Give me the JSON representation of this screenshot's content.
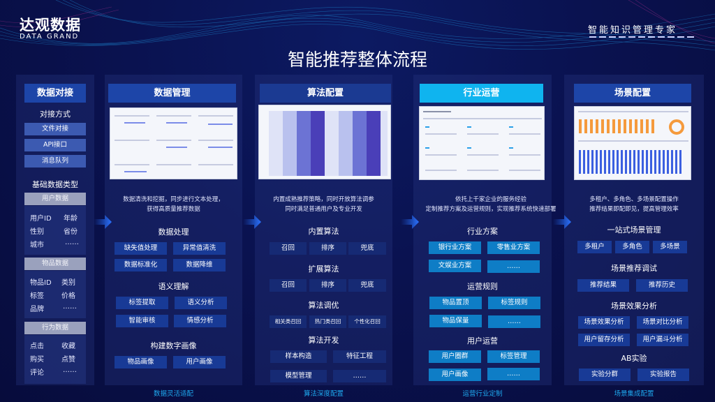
{
  "brand": {
    "name_cn": "达观数据",
    "name_en": "DATA GRAND",
    "slogan": "智能知识管理专家"
  },
  "title": "智能推荐整体流程",
  "colors": {
    "background": "#0a1250",
    "header": "#1d45a8",
    "header_active": "#0fb4ef",
    "button": "#183a96",
    "button_industry": "#0e7dc6",
    "footer_text": "#1ea8ee"
  },
  "col1": {
    "header": "数据对接",
    "method_title": "对接方式",
    "methods": [
      "文件对接",
      "API接口",
      "消息队列"
    ],
    "types_title": "基础数据类型",
    "groups": [
      {
        "label": "用户数据",
        "items": [
          "用户ID",
          "年龄",
          "性别",
          "省份",
          "城市",
          "……"
        ]
      },
      {
        "label": "物品数据",
        "items": [
          "物品ID",
          "类别",
          "标签",
          "价格",
          "品牌",
          "……"
        ]
      },
      {
        "label": "行为数据",
        "items": [
          "点击",
          "收藏",
          "购买",
          "点赞",
          "评论",
          "……"
        ]
      }
    ]
  },
  "col2": {
    "header": "数据管理",
    "desc": [
      "数据清洗和挖掘，同步进行文本处理，",
      "获得高质量推荐数据"
    ],
    "sections": [
      {
        "title": "数据处理",
        "items": [
          "缺失值处理",
          "异常值清洗",
          "数据标准化",
          "数据降维"
        ]
      },
      {
        "title": "语义理解",
        "items": [
          "标签提取",
          "语义分析",
          "智能审核",
          "情感分析"
        ]
      },
      {
        "title": "构建数字画像",
        "items": [
          "物品画像",
          "用户画像"
        ]
      }
    ],
    "footer": "数据灵活适配"
  },
  "col3": {
    "header": "算法配置",
    "desc": [
      "内置成熟推荐策略，同时开放算法调参",
      "同时满足普通用户及专业开发"
    ],
    "sections": [
      {
        "title": "内置算法",
        "items": [
          "召回",
          "排序",
          "兜底"
        ]
      },
      {
        "title": "扩展算法",
        "items": [
          "召回",
          "排序",
          "兜底"
        ]
      },
      {
        "title": "算法调优",
        "items": [
          "相关类召回",
          "热门类召回",
          "个性化召回"
        ]
      },
      {
        "title": "算法开发",
        "items": [
          "样本构造",
          "特征工程",
          "模型管理",
          "……"
        ]
      }
    ],
    "footer": "算法深度配置"
  },
  "col4": {
    "header": "行业运营",
    "desc": [
      "依托上千家企业的服务经验",
      "定制推荐方案及运营规则，实现推荐系统快速部署"
    ],
    "sections": [
      {
        "title": "行业方案",
        "items": [
          "银行业方案",
          "零售业方案",
          "文娱业方案",
          "……"
        ]
      },
      {
        "title": "运营规则",
        "items": [
          "物品置顶",
          "标签规则",
          "物品保量",
          "……"
        ]
      },
      {
        "title": "用户运营",
        "items": [
          "用户圈群",
          "标签管理",
          "用户画像",
          "……"
        ]
      }
    ],
    "footer": "运营行业定制"
  },
  "col5": {
    "header": "场景配置",
    "desc": [
      "多租户、多角色、多场景配置操作",
      "推荐结果即配即见，提高管理效率"
    ],
    "sections": [
      {
        "title": "一站式场景管理",
        "items": [
          "多租户",
          "多角色",
          "多场景"
        ]
      },
      {
        "title": "场景推荐调试",
        "items": [
          "推荐结果",
          "推荐历史"
        ]
      },
      {
        "title": "场景效果分析",
        "items": [
          "场景效果分析",
          "场景对比分析",
          "用户留存分析",
          "用户漏斗分析"
        ]
      },
      {
        "title": "AB实验",
        "items": [
          "实验分群",
          "实验报告"
        ]
      }
    ],
    "footer": "场景集成配置"
  }
}
